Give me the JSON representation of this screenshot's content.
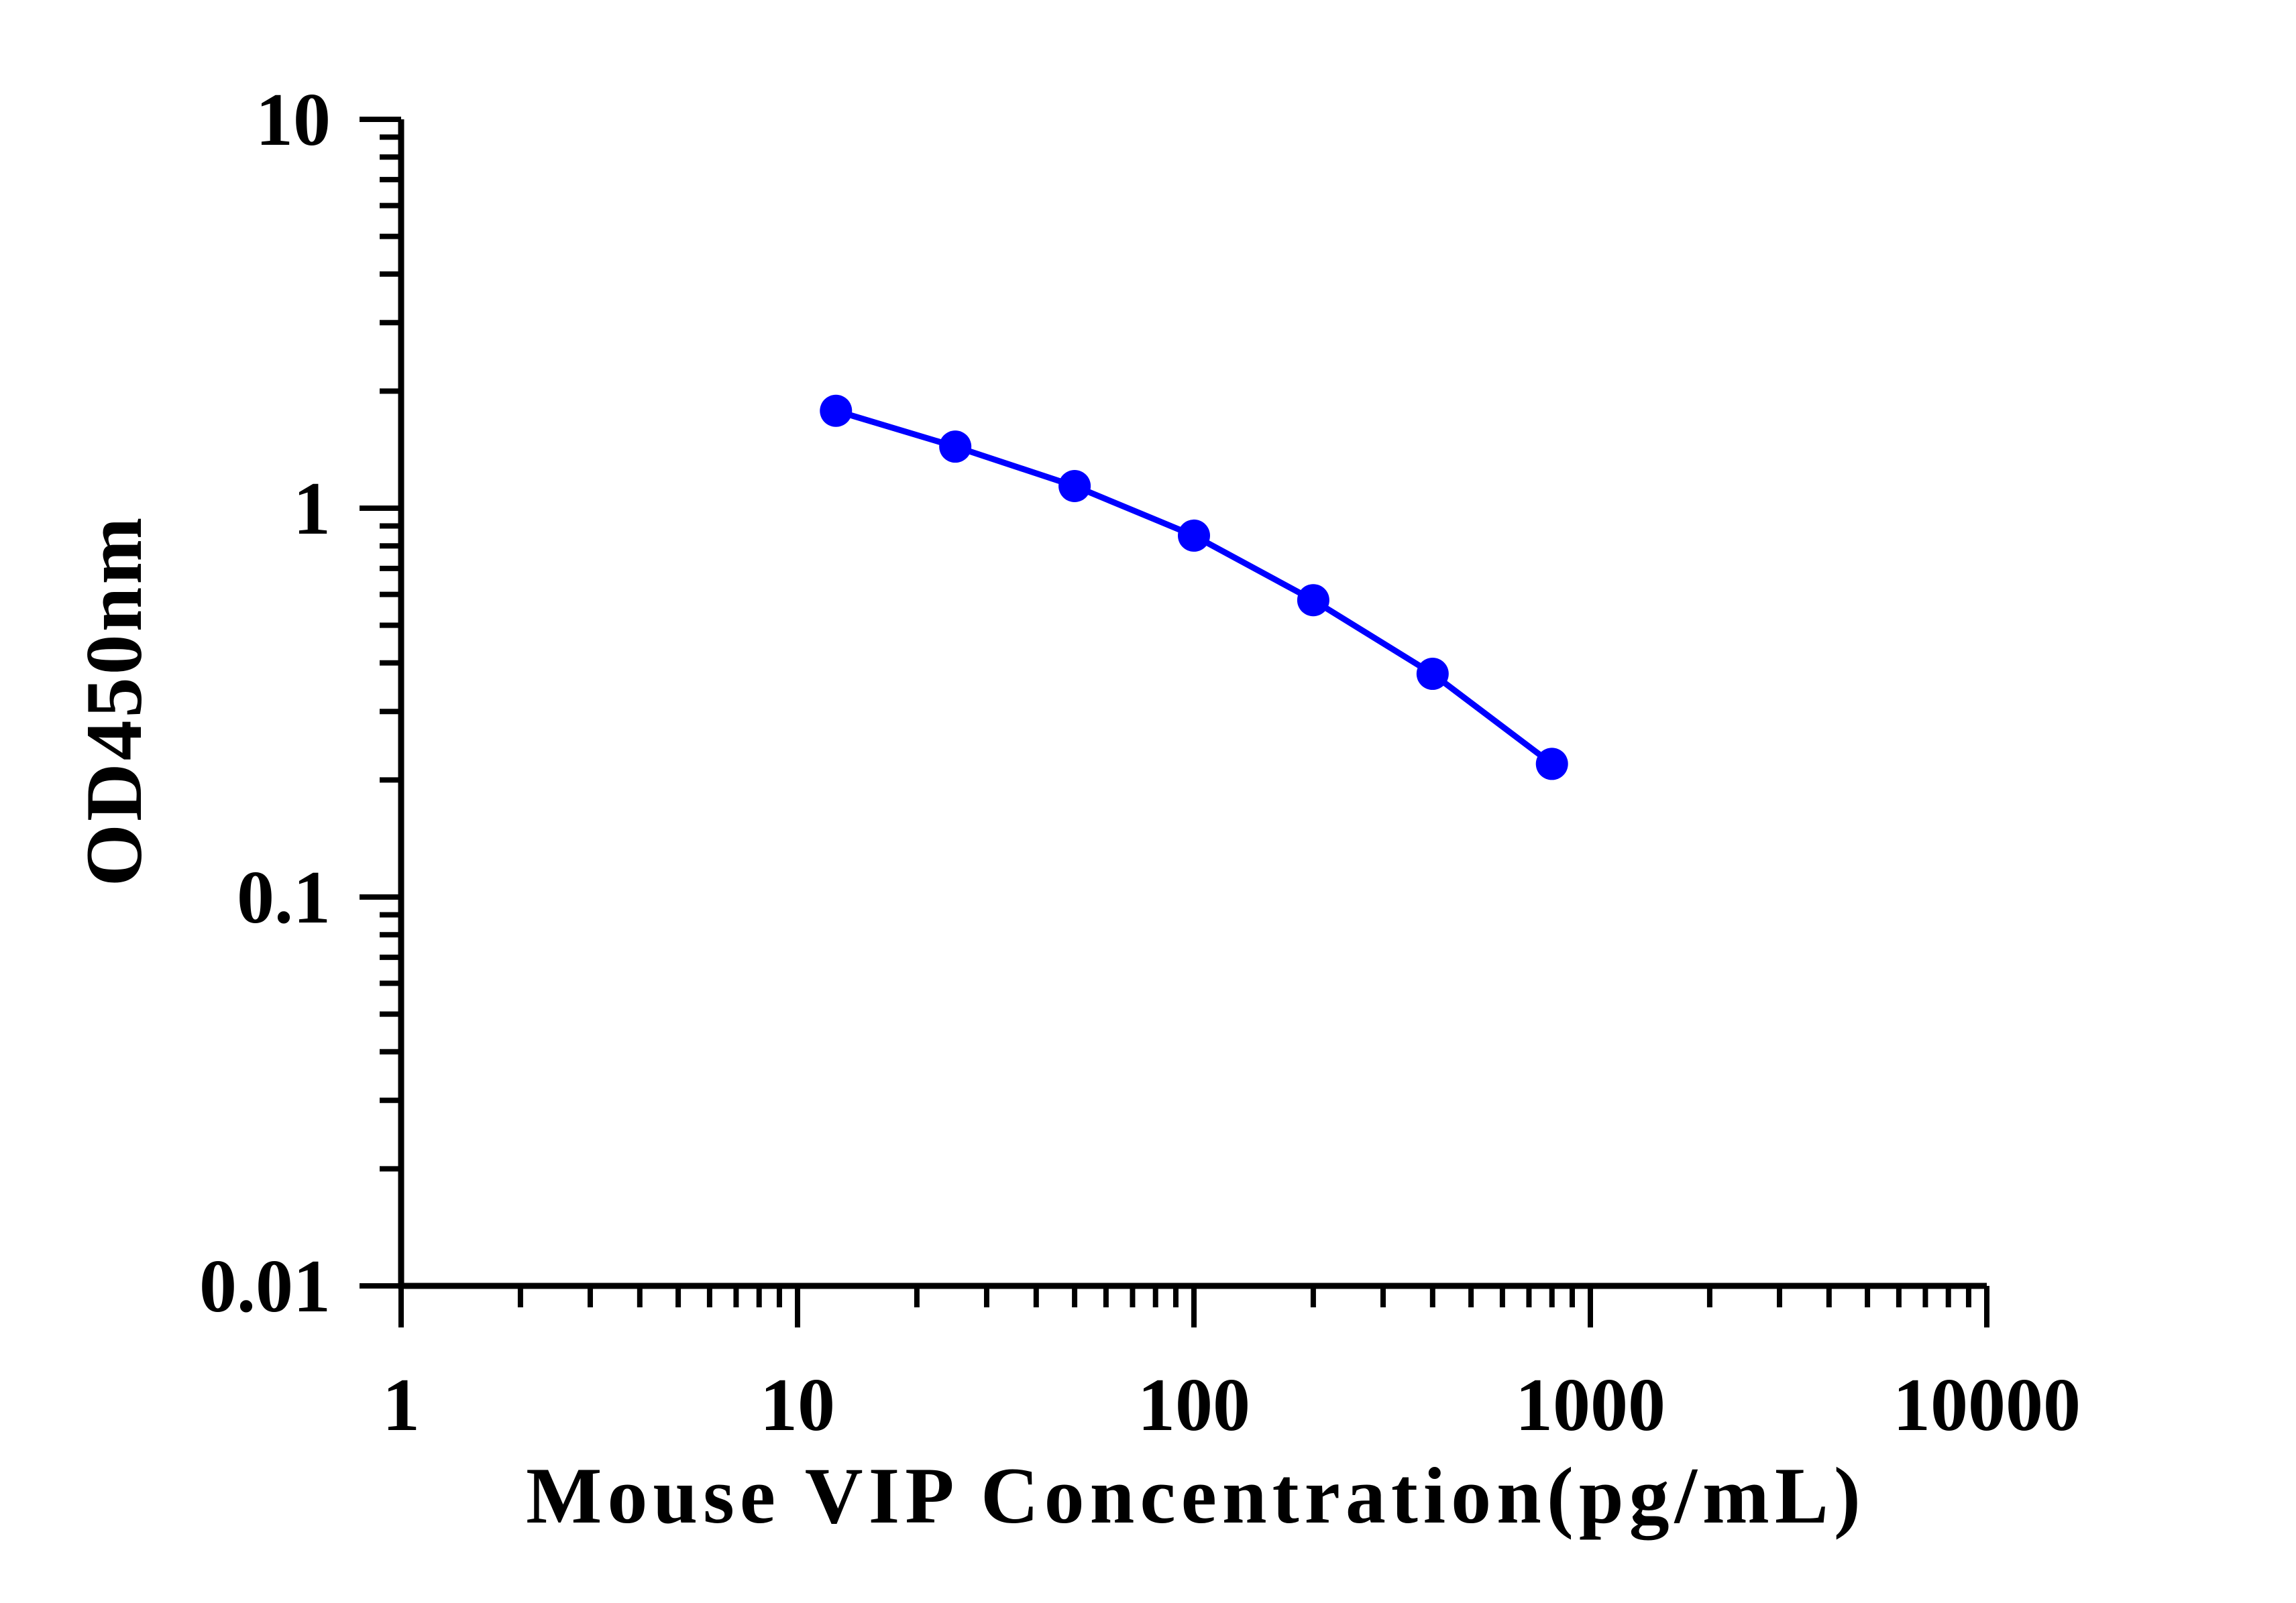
{
  "chart_data": {
    "type": "line",
    "title": "",
    "xlabel": "Mouse VIP Concentration(pg/mL)",
    "ylabel": "OD450nm",
    "x_scale": "log",
    "y_scale": "log",
    "xlim": [
      1,
      10000
    ],
    "ylim": [
      0.01,
      10
    ],
    "x_ticks": [
      1,
      10,
      100,
      1000,
      10000
    ],
    "x_tick_labels": [
      "1",
      "10",
      "100",
      "1000",
      "10000"
    ],
    "y_ticks": [
      0.01,
      0.1,
      1,
      10
    ],
    "y_tick_labels": [
      "0.01",
      "0.1",
      "1",
      "10"
    ],
    "grid": false,
    "legend": "none",
    "series": [
      {
        "color": "#0000ff",
        "marker": "circle",
        "x": [
          12.5,
          25,
          50,
          100,
          200,
          400,
          800
        ],
        "y": [
          1.78,
          1.44,
          1.14,
          0.85,
          0.58,
          0.375,
          0.22
        ]
      }
    ]
  }
}
